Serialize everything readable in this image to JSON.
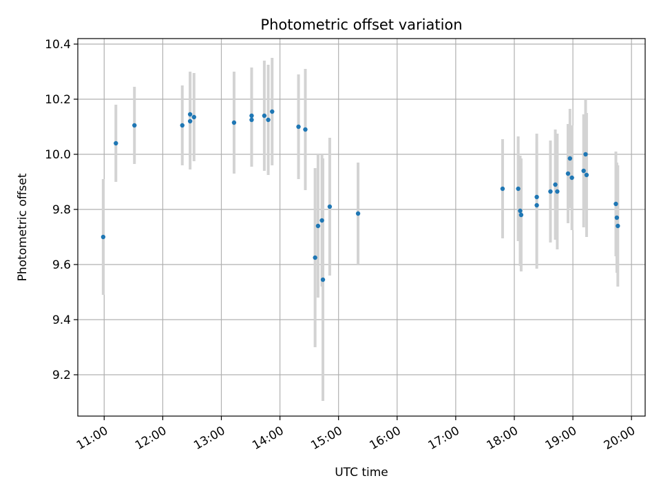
{
  "chart_data": {
    "type": "scatter",
    "title": "Photometric offset variation",
    "xlabel": "UTC time",
    "ylabel": "Photometric offset",
    "x_unit": "hours",
    "xlim": [
      "10:33",
      "20:14"
    ],
    "ylim": [
      9.05,
      10.42
    ],
    "grid": true,
    "legend": "none",
    "x_ticks": [
      "11:00",
      "12:00",
      "13:00",
      "14:00",
      "15:00",
      "16:00",
      "17:00",
      "18:00",
      "19:00",
      "20:00"
    ],
    "y_ticks": [
      9.2,
      9.4,
      9.6,
      9.8,
      10.0,
      10.2,
      10.4
    ],
    "colors": {
      "point": "#1f77b4",
      "errorbar": "#d3d3d3",
      "grid": "#b0b0b0"
    },
    "series": [
      {
        "points": [
          {
            "x": "10:59",
            "y": 9.7,
            "err": 0.21
          },
          {
            "x": "11:12",
            "y": 10.04,
            "err": 0.14
          },
          {
            "x": "11:31",
            "y": 10.105,
            "err": 0.14
          },
          {
            "x": "12:20",
            "y": 10.105,
            "err": 0.145
          },
          {
            "x": "12:28",
            "y": 10.145,
            "err": 0.155
          },
          {
            "x": "12:28",
            "y": 10.12,
            "err": 0.175
          },
          {
            "x": "12:32",
            "y": 10.135,
            "err": 0.16
          },
          {
            "x": "13:13",
            "y": 10.115,
            "err": 0.185
          },
          {
            "x": "13:31",
            "y": 10.125,
            "err": 0.17
          },
          {
            "x": "13:31",
            "y": 10.14,
            "err": 0.175
          },
          {
            "x": "13:44",
            "y": 10.14,
            "err": 0.2
          },
          {
            "x": "13:48",
            "y": 10.125,
            "err": 0.2
          },
          {
            "x": "13:52",
            "y": 10.155,
            "err": 0.195
          },
          {
            "x": "14:19",
            "y": 10.1,
            "err": 0.19
          },
          {
            "x": "14:26",
            "y": 10.09,
            "err": 0.22
          },
          {
            "x": "14:36",
            "y": 9.625,
            "err": 0.325
          },
          {
            "x": "14:39",
            "y": 9.74,
            "err": 0.26
          },
          {
            "x": "14:43",
            "y": 9.76,
            "err": 0.24
          },
          {
            "x": "14:44",
            "y": 9.545,
            "err": 0.44
          },
          {
            "x": "14:51",
            "y": 9.81,
            "err": 0.25
          },
          {
            "x": "15:20",
            "y": 9.785,
            "err": 0.185
          },
          {
            "x": "17:48",
            "y": 9.875,
            "err": 0.18
          },
          {
            "x": "18:04",
            "y": 9.875,
            "err": 0.19
          },
          {
            "x": "18:06",
            "y": 9.795,
            "err": 0.2
          },
          {
            "x": "18:07",
            "y": 9.78,
            "err": 0.205
          },
          {
            "x": "18:23",
            "y": 9.845,
            "err": 0.23
          },
          {
            "x": "18:23",
            "y": 9.815,
            "err": 0.23
          },
          {
            "x": "18:37",
            "y": 9.865,
            "err": 0.185
          },
          {
            "x": "18:42",
            "y": 9.89,
            "err": 0.2
          },
          {
            "x": "18:44",
            "y": 9.865,
            "err": 0.21
          },
          {
            "x": "18:55",
            "y": 9.93,
            "err": 0.18
          },
          {
            "x": "18:57",
            "y": 9.985,
            "err": 0.18
          },
          {
            "x": "18:59",
            "y": 9.915,
            "err": 0.19
          },
          {
            "x": "19:11",
            "y": 9.94,
            "err": 0.205
          },
          {
            "x": "19:13",
            "y": 10.0,
            "err": 0.2
          },
          {
            "x": "19:14",
            "y": 9.925,
            "err": 0.225
          },
          {
            "x": "19:44",
            "y": 9.82,
            "err": 0.19
          },
          {
            "x": "19:45",
            "y": 9.77,
            "err": 0.2
          },
          {
            "x": "19:46",
            "y": 9.74,
            "err": 0.22
          }
        ]
      }
    ]
  }
}
